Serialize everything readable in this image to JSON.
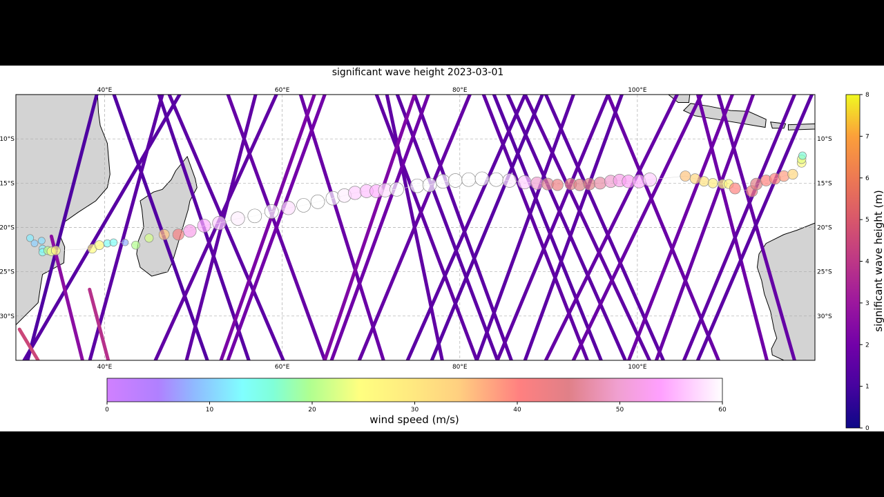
{
  "title": "significant wave height 2023-03-01",
  "chart_data": {
    "type": "map",
    "extent": {
      "lon": [
        30,
        120
      ],
      "lat": [
        -35,
        -5
      ]
    },
    "grid": true,
    "lon_ticks": [
      "40°E",
      "60°E",
      "80°E",
      "100°E"
    ],
    "lon_tick_values": [
      40,
      60,
      80,
      100
    ],
    "lat_ticks": [
      "10°S",
      "15°S",
      "20°S",
      "25°S",
      "30°S"
    ],
    "lat_tick_values": [
      -10,
      -15,
      -20,
      -25,
      -30
    ],
    "swh_colorbar": {
      "label": "significant wave height (m)",
      "range": [
        0,
        8
      ],
      "ticks": [
        "0",
        "1",
        "2",
        "3",
        "4",
        "5",
        "6",
        "7",
        "8"
      ],
      "colormap": "plasma",
      "placement": "right"
    },
    "wind_colorbar": {
      "label": "wind speed (m/s)",
      "range": [
        0,
        60
      ],
      "ticks": [
        "0",
        "10",
        "20",
        "30",
        "40",
        "50",
        "60"
      ],
      "placement": "bottom"
    },
    "altimeter_tracks": [
      {
        "lon": [
          41.05,
          51.56
        ],
        "lat": [
          -5,
          -35
        ],
        "swh": 1.3
      },
      {
        "lon": [
          46.11,
          56.23
        ],
        "lat": [
          -5,
          -35
        ],
        "swh": 1.4
      },
      {
        "lon": [
          47.28,
          60.12
        ],
        "lat": [
          -5,
          -35
        ],
        "swh": 1.5
      },
      {
        "lon": [
          62.07,
          71.4
        ],
        "lat": [
          -5,
          -35
        ],
        "swh": 1.8
      },
      {
        "lon": [
          70.62,
          81.91
        ],
        "lat": [
          -5,
          -35
        ],
        "swh": 1.6
      },
      {
        "lon": [
          72.96,
          84.24
        ],
        "lat": [
          -5,
          -35
        ],
        "swh": 1.5
      },
      {
        "lon": [
          74.9,
          85.8
        ],
        "lat": [
          -5,
          -35
        ],
        "swh": 1.5
      },
      {
        "lon": [
          82.68,
          94.36
        ],
        "lat": [
          -5,
          -35
        ],
        "swh": 1.6
      },
      {
        "lon": [
          83.85,
          95.91
        ],
        "lat": [
          -5,
          -35
        ],
        "swh": 1.4
      },
      {
        "lon": [
          85.41,
          98.64
        ],
        "lat": [
          -5,
          -35
        ],
        "swh": 1.5
      },
      {
        "lon": [
          87.35,
          101.36
        ],
        "lat": [
          -5,
          -35
        ],
        "swh": 1.6
      },
      {
        "lon": [
          89.69,
          102.92
        ],
        "lat": [
          -5,
          -35
        ],
        "swh": 1.5
      },
      {
        "lon": [
          96.69,
          109.14
        ],
        "lat": [
          -5,
          -35
        ],
        "swh": 1.8
      },
      {
        "lon": [
          106.81,
          114.59
        ],
        "lat": [
          -5,
          -35
        ],
        "swh": 1.9
      },
      {
        "lon": [
          109.14,
          117.7
        ],
        "lat": [
          -5,
          -35
        ],
        "swh": 1.7
      },
      {
        "lon": [
          53.89,
          64.79
        ],
        "lat": [
          -5,
          -35
        ],
        "swh": 1.7
      },
      {
        "lon": [
          71.79,
          78.02
        ],
        "lat": [
          -5,
          -35
        ],
        "swh": 1.6
      },
      {
        "lon": [
          48.44,
          30.93
        ],
        "lat": [
          -5,
          -35
        ],
        "swh": 1.4
      },
      {
        "lon": [
          46.5,
          38.33
        ],
        "lat": [
          -5,
          -35
        ],
        "swh": 1.5
      },
      {
        "lon": [
          59.34,
          45.72
        ],
        "lat": [
          -5,
          -35
        ],
        "swh": 1.6
      },
      {
        "lon": [
          63.62,
          53.11
        ],
        "lat": [
          -5,
          -35
        ],
        "swh": 2.2
      },
      {
        "lon": [
          64.79,
          53.89
        ],
        "lat": [
          -5,
          -35
        ],
        "swh": 2.0
      },
      {
        "lon": [
          74.9,
          64.79
        ],
        "lat": [
          -5,
          -35
        ],
        "swh": 2.3
      },
      {
        "lon": [
          76.46,
          65.56
        ],
        "lat": [
          -5,
          -35
        ],
        "swh": 1.9
      },
      {
        "lon": [
          81.13,
          68.68
        ],
        "lat": [
          -5,
          -35
        ],
        "swh": 1.7
      },
      {
        "lon": [
          87.35,
          74.12
        ],
        "lat": [
          -5,
          -35
        ],
        "swh": 1.5
      },
      {
        "lon": [
          89.3,
          76.85
        ],
        "lat": [
          -5,
          -35
        ],
        "swh": 1.4
      },
      {
        "lon": [
          92.8,
          81.91
        ],
        "lat": [
          -5,
          -35
        ],
        "swh": 1.5
      },
      {
        "lon": [
          96.69,
          84.24
        ],
        "lat": [
          -5,
          -35
        ],
        "swh": 1.6
      },
      {
        "lon": [
          98.25,
          87.35
        ],
        "lat": [
          -5,
          -35
        ],
        "swh": 1.5
      },
      {
        "lon": [
          104.47,
          89.69
        ],
        "lat": [
          -5,
          -35
        ],
        "swh": 1.7
      },
      {
        "lon": [
          107.2,
          92.8
        ],
        "lat": [
          -5,
          -35
        ],
        "swh": 1.8
      },
      {
        "lon": [
          110.7,
          99.03
        ],
        "lat": [
          -5,
          -35
        ],
        "swh": 1.9
      },
      {
        "lon": [
          117.7,
          105.25
        ],
        "lat": [
          -5,
          -35
        ],
        "swh": 1.6
      },
      {
        "lon": [
          119.65,
          106.81
        ],
        "lat": [
          -5,
          -35
        ],
        "swh": 1.5
      },
      {
        "lon": [
          113.04,
          102.14
        ],
        "lat": [
          -5,
          -35
        ],
        "swh": 1.8
      },
      {
        "lon": [
          39.11,
          31.32
        ],
        "lat": [
          -5,
          -35
        ],
        "swh": 1.2
      },
      {
        "lon": [
          57.0,
          49.22
        ],
        "lat": [
          -5,
          -35
        ],
        "swh": 1.6
      },
      {
        "lon": [
          34.0,
          37.5
        ],
        "lat": [
          -21,
          -35
        ],
        "swh": 2.6
      },
      {
        "lon": [
          38.3,
          40.4
        ],
        "lat": [
          -27,
          -35
        ],
        "swh": 3.8
      },
      {
        "lon": [
          30.4,
          32.5
        ],
        "lat": [
          -31.5,
          -35
        ],
        "swh": 4.5
      }
    ],
    "cyclone_track": [
      {
        "lon": 31.6,
        "lat": -21.2,
        "wind": 12
      },
      {
        "lon": 32.1,
        "lat": -21.8,
        "wind": 10
      },
      {
        "lon": 32.9,
        "lat": -21.5,
        "wind": 11
      },
      {
        "lon": 33.0,
        "lat": -22.4,
        "wind": 12
      },
      {
        "lon": 33.0,
        "lat": -22.8,
        "wind": 14
      },
      {
        "lon": 33.6,
        "lat": -22.6,
        "wind": 20
      },
      {
        "lon": 34.0,
        "lat": -22.7,
        "wind": 24
      },
      {
        "lon": 34.5,
        "lat": -22.6,
        "wind": 25
      },
      {
        "lon": 38.6,
        "lat": -22.4,
        "wind": 25
      },
      {
        "lon": 39.4,
        "lat": -22.0,
        "wind": 26
      },
      {
        "lon": 40.3,
        "lat": -21.8,
        "wind": 14
      },
      {
        "lon": 41.0,
        "lat": -21.7,
        "wind": 14
      },
      {
        "lon": 42.3,
        "lat": -21.7,
        "wind": 8
      },
      {
        "lon": 43.5,
        "lat": -22.0,
        "wind": 20
      },
      {
        "lon": 45.0,
        "lat": -21.2,
        "wind": 22
      },
      {
        "lon": 46.7,
        "lat": -20.8,
        "wind": 35
      },
      {
        "lon": 48.3,
        "lat": -20.8,
        "wind": 42
      },
      {
        "lon": 49.6,
        "lat": -20.4,
        "wind": 52
      },
      {
        "lon": 51.2,
        "lat": -19.8,
        "wind": 55
      },
      {
        "lon": 52.9,
        "lat": -19.5,
        "wind": 57
      },
      {
        "lon": 55.0,
        "lat": -19.0,
        "wind": 59
      },
      {
        "lon": 56.9,
        "lat": -18.7,
        "wind": 60
      },
      {
        "lon": 58.8,
        "lat": -18.2,
        "wind": 60
      },
      {
        "lon": 60.7,
        "lat": -17.8,
        "wind": 58
      },
      {
        "lon": 62.4,
        "lat": -17.5,
        "wind": 60
      },
      {
        "lon": 64.0,
        "lat": -17.1,
        "wind": 60
      },
      {
        "lon": 65.7,
        "lat": -16.7,
        "wind": 60
      },
      {
        "lon": 67.0,
        "lat": -16.4,
        "wind": 59
      },
      {
        "lon": 68.2,
        "lat": -16.1,
        "wind": 57
      },
      {
        "lon": 69.5,
        "lat": -15.9,
        "wind": 56
      },
      {
        "lon": 70.6,
        "lat": -15.9,
        "wind": 55
      },
      {
        "lon": 71.6,
        "lat": -15.8,
        "wind": 58
      },
      {
        "lon": 72.9,
        "lat": -15.7,
        "wind": 60
      },
      {
        "lon": 75.2,
        "lat": -15.3,
        "wind": 60
      },
      {
        "lon": 76.6,
        "lat": -15.2,
        "wind": 60
      },
      {
        "lon": 78.1,
        "lat": -14.8,
        "wind": 60
      },
      {
        "lon": 79.5,
        "lat": -14.7,
        "wind": 60
      },
      {
        "lon": 81.0,
        "lat": -14.6,
        "wind": 60
      },
      {
        "lon": 82.5,
        "lat": -14.5,
        "wind": 60
      },
      {
        "lon": 84.1,
        "lat": -14.6,
        "wind": 60
      },
      {
        "lon": 85.6,
        "lat": -14.7,
        "wind": 59
      },
      {
        "lon": 87.3,
        "lat": -14.9,
        "wind": 57
      },
      {
        "lon": 88.7,
        "lat": -15.0,
        "wind": 50
      },
      {
        "lon": 89.9,
        "lat": -15.1,
        "wind": 46
      },
      {
        "lon": 91.0,
        "lat": -15.2,
        "wind": 43
      },
      {
        "lon": 92.5,
        "lat": -15.1,
        "wind": 44
      },
      {
        "lon": 93.5,
        "lat": -15.2,
        "wind": 45
      },
      {
        "lon": 94.6,
        "lat": -15.1,
        "wind": 45
      },
      {
        "lon": 95.8,
        "lat": -15.0,
        "wind": 47
      },
      {
        "lon": 97.0,
        "lat": -14.8,
        "wind": 50
      },
      {
        "lon": 98.0,
        "lat": -14.7,
        "wind": 52
      },
      {
        "lon": 99.0,
        "lat": -14.8,
        "wind": 53
      },
      {
        "lon": 100.2,
        "lat": -14.8,
        "wind": 55
      },
      {
        "lon": 101.4,
        "lat": -14.6,
        "wind": 57
      },
      {
        "lon": 105.4,
        "lat": -14.2,
        "wind": 35
      },
      {
        "lon": 106.5,
        "lat": -14.5,
        "wind": 33
      },
      {
        "lon": 107.5,
        "lat": -14.8,
        "wind": 31
      },
      {
        "lon": 108.5,
        "lat": -15.0,
        "wind": 29
      },
      {
        "lon": 109.6,
        "lat": -15.1,
        "wind": 25
      },
      {
        "lon": 110.3,
        "lat": -15.1,
        "wind": 27
      },
      {
        "lon": 111.0,
        "lat": -15.6,
        "wind": 40
      },
      {
        "lon": 112.9,
        "lat": -15.9,
        "wind": 42
      },
      {
        "lon": 113.4,
        "lat": -15.1,
        "wind": 45
      },
      {
        "lon": 114.5,
        "lat": -14.7,
        "wind": 40
      },
      {
        "lon": 115.5,
        "lat": -14.5,
        "wind": 40
      },
      {
        "lon": 116.5,
        "lat": -14.2,
        "wind": 38
      },
      {
        "lon": 117.5,
        "lat": -14.0,
        "wind": 33
      },
      {
        "lon": 118.5,
        "lat": -12.7,
        "wind": 25
      },
      {
        "lon": 118.5,
        "lat": -12.3,
        "wind": 23
      },
      {
        "lon": 118.6,
        "lat": -11.9,
        "wind": 16
      }
    ]
  }
}
